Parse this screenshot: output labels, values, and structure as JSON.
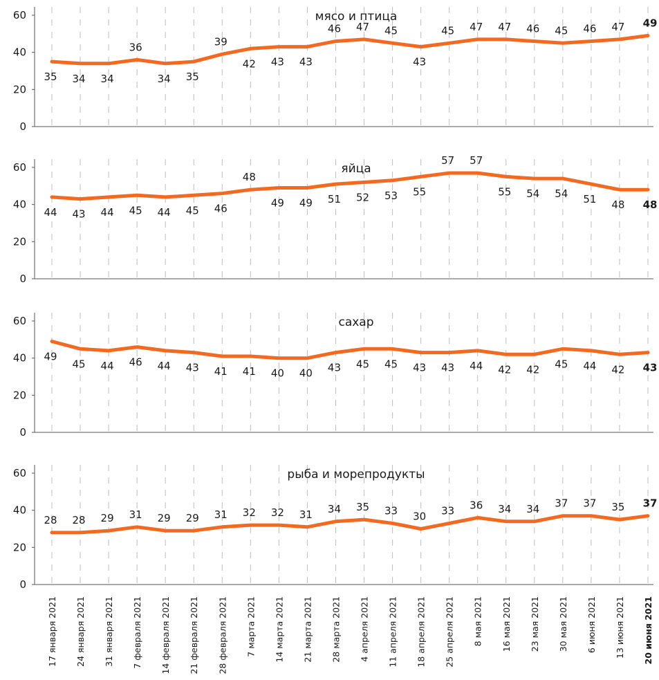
{
  "chart_data": {
    "type": "line",
    "color": "#F26A21",
    "categories": [
      "17 января 2021",
      "24 января 2021",
      "31 января 2021",
      "7 февраля 2021",
      "14 февраля 2021",
      "21 февраля 2021",
      "28 февраля 2021",
      "7 марта 2021",
      "14 марта 2021",
      "21 марта 2021",
      "28 марта 2021",
      "4 апреля 2021",
      "11 апреля 2021",
      "18 апреля 2021",
      "25 апреля 2021",
      "8 мая 2021",
      "16 мая 2021",
      "23 мая 2021",
      "30 мая 2021",
      "6 июня 2021",
      "13 июня 2021",
      "20 июня 2021"
    ],
    "ylim": [
      0,
      60
    ],
    "yticks": [
      0,
      20,
      40,
      60
    ],
    "grid": "vertical dashed",
    "panels": [
      {
        "title": "мясо и птица",
        "values": [
          35,
          34,
          34,
          36,
          34,
          35,
          39,
          42,
          43,
          43,
          46,
          47,
          45,
          43,
          45,
          47,
          47,
          46,
          45,
          46,
          47,
          49
        ]
      },
      {
        "title": "яйца",
        "values": [
          44,
          43,
          44,
          45,
          44,
          45,
          46,
          48,
          49,
          49,
          51,
          52,
          53,
          55,
          57,
          57,
          55,
          54,
          54,
          51,
          48,
          48
        ]
      },
      {
        "title": "сахар",
        "values": [
          49,
          45,
          44,
          46,
          44,
          43,
          41,
          41,
          40,
          40,
          43,
          45,
          45,
          43,
          43,
          44,
          42,
          42,
          45,
          44,
          42,
          43
        ]
      },
      {
        "title": "рыба и морепродукты",
        "values": [
          28,
          28,
          29,
          31,
          29,
          29,
          31,
          32,
          32,
          31,
          34,
          35,
          33,
          30,
          33,
          36,
          34,
          34,
          37,
          37,
          35,
          37
        ]
      }
    ]
  }
}
